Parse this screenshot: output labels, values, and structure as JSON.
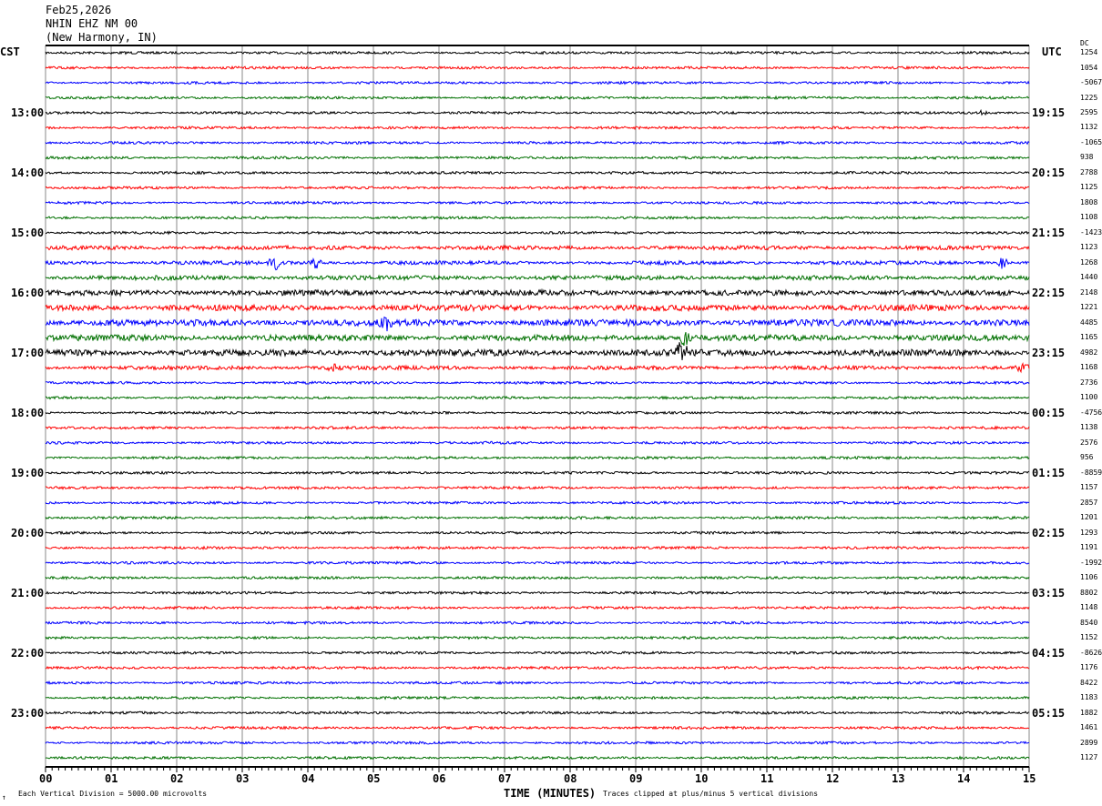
{
  "header": {
    "date": "Feb25,2026",
    "station": "NHIN EHZ NM 00",
    "location": "(New Harmony, IN)"
  },
  "chart_data": {
    "type": "line",
    "title": "",
    "xlabel": "TIME (MINUTES)",
    "xlim": [
      0,
      15
    ],
    "x_ticks": [
      "00",
      "01",
      "02",
      "03",
      "04",
      "05",
      "06",
      "07",
      "08",
      "09",
      "10",
      "11",
      "12",
      "13",
      "14",
      "15"
    ],
    "left_axis_label": "CST",
    "right_axis_label": "UTC",
    "dc_label": "DC",
    "left_hour_labels": [
      "13:00",
      "14:00",
      "15:00",
      "16:00",
      "17:00",
      "18:00",
      "19:00",
      "20:00",
      "21:00",
      "22:00",
      "23:00"
    ],
    "right_hour_labels": [
      "19:15",
      "20:15",
      "21:15",
      "22:15",
      "23:15",
      "00:15",
      "01:15",
      "02:15",
      "03:15",
      "04:15",
      "05:15"
    ],
    "trace_colors": [
      "#000000",
      "#ff0000",
      "#0000ff",
      "#007000"
    ],
    "traces_per_hour": 4,
    "trace_count": 48,
    "dc_offsets": [
      "1254",
      "1054",
      "-5067",
      "1225",
      "2595",
      "1132",
      "-1065",
      "938",
      "2788",
      "1125",
      "1808",
      "1108",
      "-1423",
      "1123",
      "1268",
      "1440",
      "2148",
      "1221",
      "4485",
      "1165",
      "4982",
      "1168",
      "2736",
      "1100",
      "-4756",
      "1138",
      "2576",
      "956",
      "-8859",
      "1157",
      "2857",
      "1201",
      "1293",
      "1191",
      "-1992",
      "1106",
      "8802",
      "1148",
      "8540",
      "1152",
      "-8626",
      "1176",
      "8422",
      "1183",
      "1882",
      "1461",
      "2899",
      "1127"
    ],
    "scale_note": "Each Vertical Division = 5000.00 microvolts",
    "clip_note": "Traces clipped at plus/minus 5 vertical divisions",
    "grid": true
  },
  "footer": {
    "corner_mark": "↑"
  }
}
